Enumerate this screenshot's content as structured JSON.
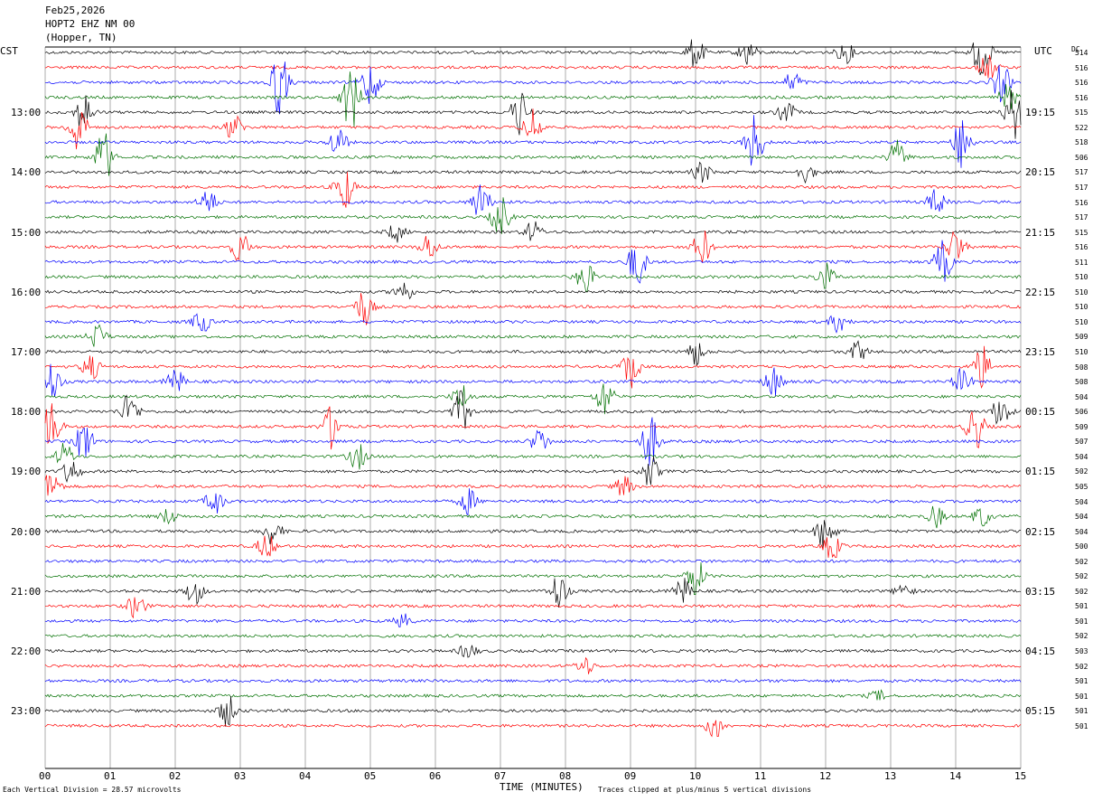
{
  "header": {
    "date": "Feb25,2026",
    "station": "HOPT2 EHZ NM 00",
    "location": "(Hopper, TN)"
  },
  "left_tz": "CST",
  "right_tz": "UTC",
  "dc_label": "DC",
  "footer": {
    "scale_note": "Each Vertical Division =   28.57 microvolts",
    "xlabel": "TIME (MINUTES)",
    "clip_note": "Traces clipped at plus/minus 5 vertical divisions"
  },
  "colors": {
    "cycle": [
      "#000000",
      "#ff0000",
      "#0000ff",
      "#007000"
    ]
  },
  "chart_data": {
    "type": "line",
    "xlabel": "TIME (MINUTES)",
    "xlim": [
      0,
      15
    ],
    "x_ticks": [
      "00",
      "01",
      "02",
      "03",
      "04",
      "05",
      "06",
      "07",
      "08",
      "09",
      "10",
      "11",
      "12",
      "13",
      "14",
      "15"
    ],
    "minutes_per_line": 15,
    "left_hour_labels": [
      "13:00",
      "14:00",
      "15:00",
      "16:00",
      "17:00",
      "18:00",
      "19:00",
      "20:00",
      "21:00",
      "22:00",
      "23:00"
    ],
    "right_hour_labels": [
      "19:15",
      "20:15",
      "21:15",
      "22:15",
      "23:15",
      "00:15",
      "01:15",
      "02:15",
      "03:15",
      "04:15",
      "05:15"
    ],
    "dc_offsets": [
      514,
      516,
      516,
      516,
      515,
      522,
      518,
      506,
      517,
      517,
      516,
      517,
      515,
      516,
      511,
      510,
      510,
      510,
      510,
      509,
      510,
      508,
      508,
      504,
      506,
      509,
      507,
      504,
      502,
      505,
      504,
      504,
      504,
      500,
      502,
      502,
      502,
      501,
      501,
      502,
      503,
      502,
      501,
      501,
      501,
      501
    ],
    "events": [
      {
        "line": 0,
        "minute": 10.0,
        "amp": 1.2
      },
      {
        "line": 0,
        "minute": 10.8,
        "amp": 1.0
      },
      {
        "line": 0,
        "minute": 12.3,
        "amp": 0.8
      },
      {
        "line": 0,
        "minute": 14.4,
        "amp": 2.0
      },
      {
        "line": 1,
        "minute": 14.5,
        "amp": 1.0
      },
      {
        "line": 2,
        "minute": 3.6,
        "amp": 2.5
      },
      {
        "line": 2,
        "minute": 5.0,
        "amp": 1.8
      },
      {
        "line": 2,
        "minute": 11.5,
        "amp": 0.8
      },
      {
        "line": 2,
        "minute": 14.7,
        "amp": 1.5
      },
      {
        "line": 3,
        "minute": 4.7,
        "amp": 2.5
      },
      {
        "line": 3,
        "minute": 14.8,
        "amp": 1.0
      },
      {
        "line": 4,
        "minute": 0.6,
        "amp": 1.5
      },
      {
        "line": 4,
        "minute": 7.3,
        "amp": 1.8
      },
      {
        "line": 4,
        "minute": 11.4,
        "amp": 0.8
      },
      {
        "line": 4,
        "minute": 14.9,
        "amp": 2.0
      },
      {
        "line": 5,
        "minute": 0.5,
        "amp": 2.0
      },
      {
        "line": 5,
        "minute": 7.5,
        "amp": 1.5
      },
      {
        "line": 5,
        "minute": 2.9,
        "amp": 1.0
      },
      {
        "line": 6,
        "minute": 10.9,
        "amp": 2.2
      },
      {
        "line": 6,
        "minute": 14.1,
        "amp": 2.0
      },
      {
        "line": 6,
        "minute": 4.5,
        "amp": 1.2
      },
      {
        "line": 7,
        "minute": 0.9,
        "amp": 2.0
      },
      {
        "line": 7,
        "minute": 13.1,
        "amp": 1.2
      },
      {
        "line": 8,
        "minute": 10.1,
        "amp": 0.8
      },
      {
        "line": 8,
        "minute": 11.7,
        "amp": 0.7
      },
      {
        "line": 9,
        "minute": 4.6,
        "amp": 1.8
      },
      {
        "line": 10,
        "minute": 6.7,
        "amp": 1.5
      },
      {
        "line": 10,
        "minute": 2.5,
        "amp": 1.0
      },
      {
        "line": 10,
        "minute": 13.7,
        "amp": 1.0
      },
      {
        "line": 11,
        "minute": 7.0,
        "amp": 1.6
      },
      {
        "line": 12,
        "minute": 7.5,
        "amp": 0.8
      },
      {
        "line": 12,
        "minute": 5.4,
        "amp": 0.7
      },
      {
        "line": 13,
        "minute": 3.0,
        "amp": 1.2
      },
      {
        "line": 13,
        "minute": 10.1,
        "amp": 1.4
      },
      {
        "line": 13,
        "minute": 14.0,
        "amp": 1.4
      },
      {
        "line": 13,
        "minute": 5.9,
        "amp": 1.0
      },
      {
        "line": 14,
        "minute": 9.1,
        "amp": 1.8
      },
      {
        "line": 14,
        "minute": 13.8,
        "amp": 1.6
      },
      {
        "line": 15,
        "minute": 8.3,
        "amp": 1.2
      },
      {
        "line": 15,
        "minute": 12.0,
        "amp": 1.0
      },
      {
        "line": 16,
        "minute": 5.5,
        "amp": 0.9
      },
      {
        "line": 17,
        "minute": 4.9,
        "amp": 1.4
      },
      {
        "line": 18,
        "minute": 2.4,
        "amp": 0.9
      },
      {
        "line": 18,
        "minute": 12.2,
        "amp": 0.8
      },
      {
        "line": 19,
        "minute": 0.8,
        "amp": 1.0
      },
      {
        "line": 20,
        "minute": 10.0,
        "amp": 1.0
      },
      {
        "line": 20,
        "minute": 12.5,
        "amp": 0.8
      },
      {
        "line": 21,
        "minute": 0.7,
        "amp": 1.0
      },
      {
        "line": 21,
        "minute": 9.0,
        "amp": 1.6
      },
      {
        "line": 21,
        "minute": 14.4,
        "amp": 1.6
      },
      {
        "line": 22,
        "minute": 0.1,
        "amp": 1.5
      },
      {
        "line": 22,
        "minute": 11.2,
        "amp": 1.2
      },
      {
        "line": 22,
        "minute": 2.0,
        "amp": 1.0
      },
      {
        "line": 22,
        "minute": 14.1,
        "amp": 1.0
      },
      {
        "line": 23,
        "minute": 8.6,
        "amp": 1.5
      },
      {
        "line": 23,
        "minute": 6.4,
        "amp": 1.0
      },
      {
        "line": 24,
        "minute": 1.3,
        "amp": 1.4
      },
      {
        "line": 24,
        "minute": 6.4,
        "amp": 1.5
      },
      {
        "line": 24,
        "minute": 14.7,
        "amp": 1.3
      },
      {
        "line": 25,
        "minute": 0.1,
        "amp": 2.0
      },
      {
        "line": 25,
        "minute": 4.4,
        "amp": 1.6
      },
      {
        "line": 25,
        "minute": 14.3,
        "amp": 1.8
      },
      {
        "line": 26,
        "minute": 0.6,
        "amp": 1.6
      },
      {
        "line": 26,
        "minute": 9.3,
        "amp": 2.0
      },
      {
        "line": 26,
        "minute": 7.6,
        "amp": 1.0
      },
      {
        "line": 27,
        "minute": 0.3,
        "amp": 1.0
      },
      {
        "line": 27,
        "minute": 4.8,
        "amp": 1.0
      },
      {
        "line": 28,
        "minute": 9.3,
        "amp": 1.2
      },
      {
        "line": 28,
        "minute": 0.4,
        "amp": 1.0
      },
      {
        "line": 29,
        "minute": 0.1,
        "amp": 1.2
      },
      {
        "line": 29,
        "minute": 8.9,
        "amp": 0.8
      },
      {
        "line": 30,
        "minute": 2.6,
        "amp": 1.0
      },
      {
        "line": 30,
        "minute": 6.5,
        "amp": 1.0
      },
      {
        "line": 31,
        "minute": 14.4,
        "amp": 0.8
      },
      {
        "line": 31,
        "minute": 1.9,
        "amp": 0.6
      },
      {
        "line": 31,
        "minute": 13.7,
        "amp": 0.8
      },
      {
        "line": 32,
        "minute": 12.0,
        "amp": 1.6
      },
      {
        "line": 32,
        "minute": 3.5,
        "amp": 1.0
      },
      {
        "line": 33,
        "minute": 12.1,
        "amp": 1.0
      },
      {
        "line": 33,
        "minute": 3.4,
        "amp": 1.0
      },
      {
        "line": 35,
        "minute": 10.0,
        "amp": 1.5
      },
      {
        "line": 36,
        "minute": 7.9,
        "amp": 1.4
      },
      {
        "line": 36,
        "minute": 2.3,
        "amp": 1.0
      },
      {
        "line": 36,
        "minute": 9.8,
        "amp": 1.0
      },
      {
        "line": 36,
        "minute": 13.2,
        "amp": 0.6
      },
      {
        "line": 37,
        "minute": 1.4,
        "amp": 1.0
      },
      {
        "line": 38,
        "minute": 5.5,
        "amp": 0.5
      },
      {
        "line": 40,
        "minute": 6.5,
        "amp": 0.6
      },
      {
        "line": 41,
        "minute": 8.3,
        "amp": 0.7
      },
      {
        "line": 43,
        "minute": 12.8,
        "amp": 0.4
      },
      {
        "line": 44,
        "minute": 2.8,
        "amp": 1.2
      },
      {
        "line": 45,
        "minute": 10.3,
        "amp": 1.0
      }
    ]
  }
}
